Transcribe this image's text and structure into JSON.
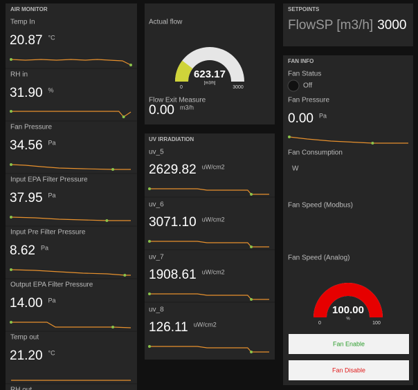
{
  "air_monitor": {
    "title": "AIR MONITOR",
    "widgets": [
      {
        "label": "Temp In",
        "value": "20.87",
        "unit": "°C"
      },
      {
        "label": "RH in",
        "value": "31.90",
        "unit": "%"
      },
      {
        "label": "Fan Pressure",
        "value": "34.56",
        "unit": "Pa"
      },
      {
        "label": "Input EPA Filter Pressure",
        "value": "37.95",
        "unit": "Pa"
      },
      {
        "label": "Input Pre Filter Pressure",
        "value": "8.62",
        "unit": "Pa"
      },
      {
        "label": "Output EPA Filter Pressure",
        "value": "14.00",
        "unit": "Pa"
      },
      {
        "label": "Temp out",
        "value": "21.20",
        "unit": "°C"
      },
      {
        "label": "RH out"
      }
    ]
  },
  "flow": {
    "gauge": {
      "label": "Actual flow",
      "value": 623.17,
      "value_label": "623.17",
      "unit": "[m3/h]",
      "min": 0,
      "max": 3000
    },
    "exit": {
      "label": "Flow Exit Measure",
      "value": "0.00",
      "unit": "m3/h"
    }
  },
  "uv": {
    "title": "UV IRRADIATION",
    "widgets": [
      {
        "label": "uv_5",
        "value": "2629.82",
        "unit": "uW/cm2"
      },
      {
        "label": "uv_6",
        "value": "3071.10",
        "unit": "uW/cm2"
      },
      {
        "label": "uv_7",
        "value": "1908.61",
        "unit": "uW/cm2"
      },
      {
        "label": "uv_8",
        "value": "126.11",
        "unit": "uW/cm2"
      }
    ]
  },
  "setpoints": {
    "title": "SETPOINTS",
    "label": "FlowSP [m3/h]",
    "value": "3000"
  },
  "fan_info": {
    "title": "FAN INFO",
    "status": {
      "label": "Fan Status",
      "value": "Off"
    },
    "pressure": {
      "label": "Fan Pressure",
      "value": "0.00",
      "unit": "Pa"
    },
    "consumption": {
      "label": "Fan Consumption",
      "unit": "W"
    },
    "speed_modbus": {
      "label": "Fan Speed (Modbus)"
    },
    "speed_analog": {
      "label": "Fan Speed (Analog)",
      "value": 100,
      "value_label": "100.00",
      "unit": "%",
      "min": 0,
      "max": 100
    },
    "buttons": [
      "Fan Enable",
      "Fan Disable"
    ]
  }
}
